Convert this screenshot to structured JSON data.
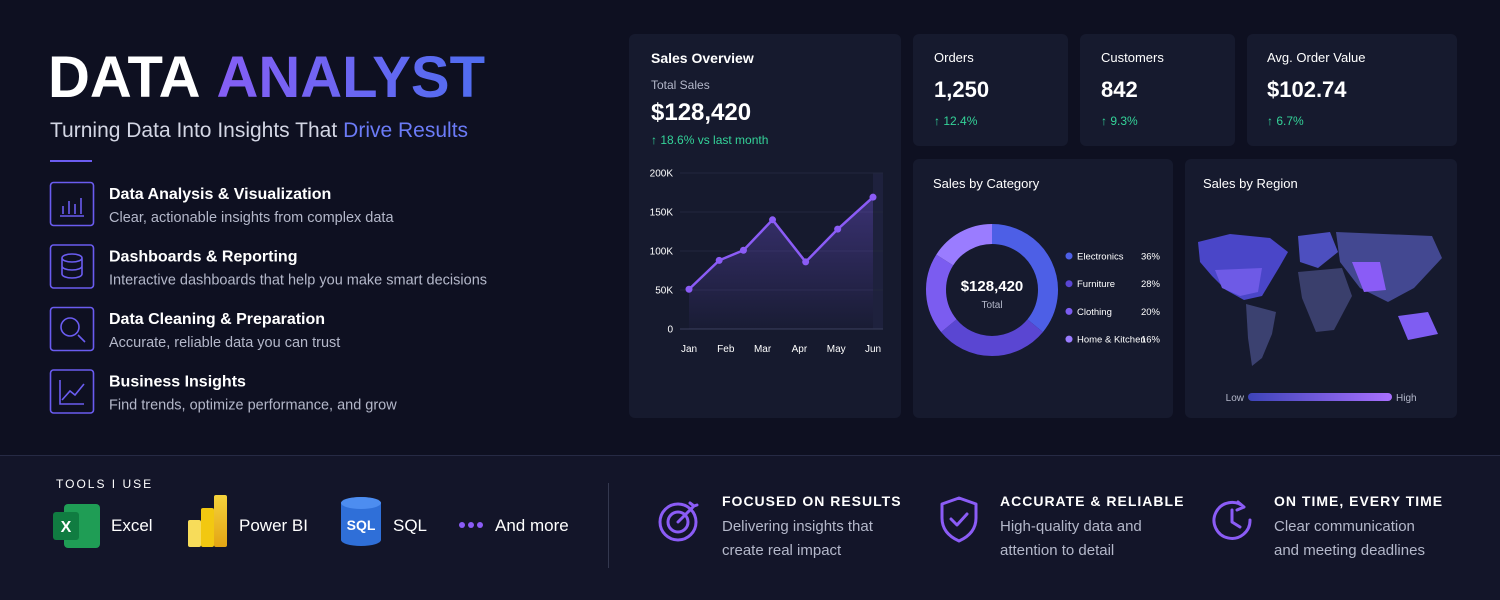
{
  "header": {
    "title": [
      "DATA",
      "ANALYST"
    ],
    "subtitle": [
      "Turning Data Into Insights That",
      "Drive Results"
    ]
  },
  "features": [
    {
      "title": "Data Analysis & Visualization",
      "description": "Clear, actionable insights from complex data"
    },
    {
      "title": "Dashboards & Reporting",
      "description": "Interactive dashboards that help you make smart decisions"
    },
    {
      "title": "Data Cleaning & Preparation",
      "description": "Accurate, reliable data you can trust"
    },
    {
      "title": "Business Insights",
      "description": "Find trends, optimize performance, and grow"
    }
  ],
  "kpis": [
    {
      "label": "Orders",
      "value": "1,250",
      "change": "↑ 12.4%"
    },
    {
      "label": "Customers",
      "value": "842",
      "change": "↑ 9.3%"
    },
    {
      "label": "Avg. Order Value",
      "value": "$102.74",
      "change": "↑ 6.7%"
    }
  ],
  "chart_data": [
    {
      "type": "line",
      "title": "Sales Overview",
      "subtitle": "Total Sales",
      "total": "$128,420",
      "change": "↑ 18.6% vs last month",
      "x": [
        0,
        0.82,
        1.48,
        2.27,
        3.17,
        4.04,
        5
      ],
      "values": [
        51000,
        88000,
        101000,
        140000,
        86000,
        128000,
        169000
      ],
      "color": "#8b5cf6",
      "xlim": [
        0,
        5
      ],
      "xticks": [
        {
          "value": 0,
          "label": "Jan"
        },
        {
          "value": 1,
          "label": "Feb"
        },
        {
          "value": 2,
          "label": "Mar"
        },
        {
          "value": 3,
          "label": "Apr"
        },
        {
          "value": 4,
          "label": "May"
        },
        {
          "value": 5,
          "label": "Jun"
        }
      ],
      "ylim": [
        0,
        200000
      ],
      "yticks": [
        0,
        {
          "value": 50000,
          "label": "50K"
        },
        {
          "value": 100000,
          "label": "100K"
        },
        {
          "value": 150000,
          "label": "150K"
        },
        {
          "value": 200000,
          "label": "200K"
        }
      ],
      "grid": true
    },
    {
      "type": "pie",
      "title": "Sales by Category",
      "center_value": "$128,420",
      "center_label": "Total",
      "categories": [
        "Electronics",
        "Furniture",
        "Clothing",
        "Home & Kitchen"
      ],
      "values": [
        36,
        28,
        20,
        16
      ],
      "value_labels": [
        "36%",
        "28%",
        "20%",
        "16%"
      ],
      "colors": [
        "#4d5fe6",
        "#5a46d2",
        "#7b5cf0",
        "#9a7cff"
      ]
    }
  ],
  "region_map": {
    "title": "Sales by Region",
    "legend": [
      "Low",
      "High"
    ]
  },
  "tools": {
    "title": "TOOLS I USE",
    "items": [
      {
        "name": "Excel",
        "icon_text": "X"
      },
      {
        "name": "Power BI"
      },
      {
        "name": "SQL",
        "icon_text": "SQL"
      },
      {
        "name": "And more"
      }
    ]
  },
  "values": [
    {
      "title": "FOCUSED ON RESULTS",
      "description": [
        "Delivering insights that",
        "create real impact"
      ]
    },
    {
      "title": "ACCURATE & RELIABLE",
      "description": [
        "High-quality data and",
        "attention to detail"
      ]
    },
    {
      "title": "ON TIME, EVERY TIME",
      "description": [
        "Clear communication",
        "and meeting deadlines"
      ]
    }
  ]
}
